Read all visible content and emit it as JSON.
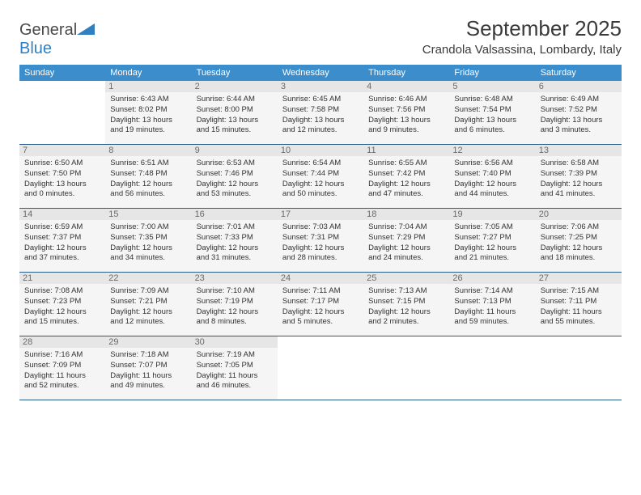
{
  "logo": {
    "brand_part1": "General",
    "brand_part2": "Blue"
  },
  "header": {
    "month_title": "September 2025",
    "location": "Crandola Valsassina, Lombardy, Italy"
  },
  "colors": {
    "header_bg": "#3c8dcc",
    "row_border": "#2a5a8a",
    "daynum_bg": "#e6e6e6",
    "cell_bg": "#f5f5f5",
    "logo_blue": "#2f7fc1"
  },
  "weekdays": [
    "Sunday",
    "Monday",
    "Tuesday",
    "Wednesday",
    "Thursday",
    "Friday",
    "Saturday"
  ],
  "weeks": [
    [
      null,
      {
        "n": "1",
        "sunrise": "Sunrise: 6:43 AM",
        "sunset": "Sunset: 8:02 PM",
        "day1": "Daylight: 13 hours",
        "day2": "and 19 minutes."
      },
      {
        "n": "2",
        "sunrise": "Sunrise: 6:44 AM",
        "sunset": "Sunset: 8:00 PM",
        "day1": "Daylight: 13 hours",
        "day2": "and 15 minutes."
      },
      {
        "n": "3",
        "sunrise": "Sunrise: 6:45 AM",
        "sunset": "Sunset: 7:58 PM",
        "day1": "Daylight: 13 hours",
        "day2": "and 12 minutes."
      },
      {
        "n": "4",
        "sunrise": "Sunrise: 6:46 AM",
        "sunset": "Sunset: 7:56 PM",
        "day1": "Daylight: 13 hours",
        "day2": "and 9 minutes."
      },
      {
        "n": "5",
        "sunrise": "Sunrise: 6:48 AM",
        "sunset": "Sunset: 7:54 PM",
        "day1": "Daylight: 13 hours",
        "day2": "and 6 minutes."
      },
      {
        "n": "6",
        "sunrise": "Sunrise: 6:49 AM",
        "sunset": "Sunset: 7:52 PM",
        "day1": "Daylight: 13 hours",
        "day2": "and 3 minutes."
      }
    ],
    [
      {
        "n": "7",
        "sunrise": "Sunrise: 6:50 AM",
        "sunset": "Sunset: 7:50 PM",
        "day1": "Daylight: 13 hours",
        "day2": "and 0 minutes."
      },
      {
        "n": "8",
        "sunrise": "Sunrise: 6:51 AM",
        "sunset": "Sunset: 7:48 PM",
        "day1": "Daylight: 12 hours",
        "day2": "and 56 minutes."
      },
      {
        "n": "9",
        "sunrise": "Sunrise: 6:53 AM",
        "sunset": "Sunset: 7:46 PM",
        "day1": "Daylight: 12 hours",
        "day2": "and 53 minutes."
      },
      {
        "n": "10",
        "sunrise": "Sunrise: 6:54 AM",
        "sunset": "Sunset: 7:44 PM",
        "day1": "Daylight: 12 hours",
        "day2": "and 50 minutes."
      },
      {
        "n": "11",
        "sunrise": "Sunrise: 6:55 AM",
        "sunset": "Sunset: 7:42 PM",
        "day1": "Daylight: 12 hours",
        "day2": "and 47 minutes."
      },
      {
        "n": "12",
        "sunrise": "Sunrise: 6:56 AM",
        "sunset": "Sunset: 7:40 PM",
        "day1": "Daylight: 12 hours",
        "day2": "and 44 minutes."
      },
      {
        "n": "13",
        "sunrise": "Sunrise: 6:58 AM",
        "sunset": "Sunset: 7:39 PM",
        "day1": "Daylight: 12 hours",
        "day2": "and 41 minutes."
      }
    ],
    [
      {
        "n": "14",
        "sunrise": "Sunrise: 6:59 AM",
        "sunset": "Sunset: 7:37 PM",
        "day1": "Daylight: 12 hours",
        "day2": "and 37 minutes."
      },
      {
        "n": "15",
        "sunrise": "Sunrise: 7:00 AM",
        "sunset": "Sunset: 7:35 PM",
        "day1": "Daylight: 12 hours",
        "day2": "and 34 minutes."
      },
      {
        "n": "16",
        "sunrise": "Sunrise: 7:01 AM",
        "sunset": "Sunset: 7:33 PM",
        "day1": "Daylight: 12 hours",
        "day2": "and 31 minutes."
      },
      {
        "n": "17",
        "sunrise": "Sunrise: 7:03 AM",
        "sunset": "Sunset: 7:31 PM",
        "day1": "Daylight: 12 hours",
        "day2": "and 28 minutes."
      },
      {
        "n": "18",
        "sunrise": "Sunrise: 7:04 AM",
        "sunset": "Sunset: 7:29 PM",
        "day1": "Daylight: 12 hours",
        "day2": "and 24 minutes."
      },
      {
        "n": "19",
        "sunrise": "Sunrise: 7:05 AM",
        "sunset": "Sunset: 7:27 PM",
        "day1": "Daylight: 12 hours",
        "day2": "and 21 minutes."
      },
      {
        "n": "20",
        "sunrise": "Sunrise: 7:06 AM",
        "sunset": "Sunset: 7:25 PM",
        "day1": "Daylight: 12 hours",
        "day2": "and 18 minutes."
      }
    ],
    [
      {
        "n": "21",
        "sunrise": "Sunrise: 7:08 AM",
        "sunset": "Sunset: 7:23 PM",
        "day1": "Daylight: 12 hours",
        "day2": "and 15 minutes."
      },
      {
        "n": "22",
        "sunrise": "Sunrise: 7:09 AM",
        "sunset": "Sunset: 7:21 PM",
        "day1": "Daylight: 12 hours",
        "day2": "and 12 minutes."
      },
      {
        "n": "23",
        "sunrise": "Sunrise: 7:10 AM",
        "sunset": "Sunset: 7:19 PM",
        "day1": "Daylight: 12 hours",
        "day2": "and 8 minutes."
      },
      {
        "n": "24",
        "sunrise": "Sunrise: 7:11 AM",
        "sunset": "Sunset: 7:17 PM",
        "day1": "Daylight: 12 hours",
        "day2": "and 5 minutes."
      },
      {
        "n": "25",
        "sunrise": "Sunrise: 7:13 AM",
        "sunset": "Sunset: 7:15 PM",
        "day1": "Daylight: 12 hours",
        "day2": "and 2 minutes."
      },
      {
        "n": "26",
        "sunrise": "Sunrise: 7:14 AM",
        "sunset": "Sunset: 7:13 PM",
        "day1": "Daylight: 11 hours",
        "day2": "and 59 minutes."
      },
      {
        "n": "27",
        "sunrise": "Sunrise: 7:15 AM",
        "sunset": "Sunset: 7:11 PM",
        "day1": "Daylight: 11 hours",
        "day2": "and 55 minutes."
      }
    ],
    [
      {
        "n": "28",
        "sunrise": "Sunrise: 7:16 AM",
        "sunset": "Sunset: 7:09 PM",
        "day1": "Daylight: 11 hours",
        "day2": "and 52 minutes."
      },
      {
        "n": "29",
        "sunrise": "Sunrise: 7:18 AM",
        "sunset": "Sunset: 7:07 PM",
        "day1": "Daylight: 11 hours",
        "day2": "and 49 minutes."
      },
      {
        "n": "30",
        "sunrise": "Sunrise: 7:19 AM",
        "sunset": "Sunset: 7:05 PM",
        "day1": "Daylight: 11 hours",
        "day2": "and 46 minutes."
      },
      null,
      null,
      null,
      null
    ]
  ]
}
